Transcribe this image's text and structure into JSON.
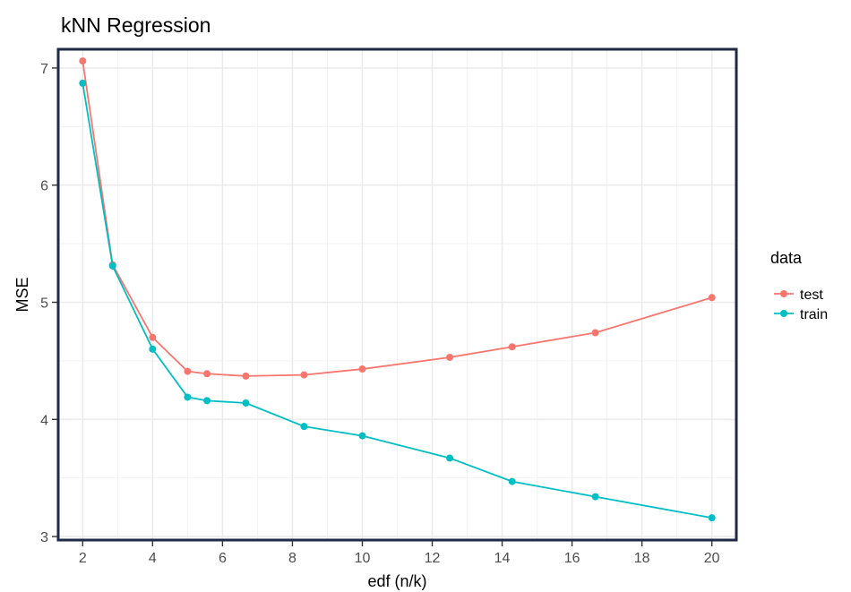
{
  "chart_data": {
    "type": "line",
    "title": "kNN Regression",
    "xlabel": "edf (n/k)",
    "ylabel": "MSE",
    "xlim": [
      1.3,
      20.7
    ],
    "ylim": [
      2.97,
      7.16
    ],
    "x_ticks": [
      2,
      4,
      6,
      8,
      10,
      12,
      14,
      16,
      18,
      20
    ],
    "y_ticks": [
      3,
      4,
      5,
      6,
      7
    ],
    "grid": true,
    "legend": {
      "title": "data",
      "position": "right"
    },
    "x": [
      2,
      2.857,
      4,
      5,
      5.556,
      6.667,
      8.333,
      10,
      12.5,
      14.286,
      16.667,
      20
    ],
    "series": [
      {
        "name": "test",
        "color": "#F8766D",
        "values": [
          7.06,
          5.32,
          4.7,
          4.41,
          4.39,
          4.37,
          4.38,
          4.43,
          4.53,
          4.62,
          4.74,
          5.04
        ]
      },
      {
        "name": "train",
        "color": "#00BFC4",
        "values": [
          6.87,
          5.31,
          4.6,
          4.19,
          4.16,
          4.14,
          3.94,
          3.86,
          3.67,
          3.47,
          3.34,
          3.16
        ]
      }
    ]
  }
}
